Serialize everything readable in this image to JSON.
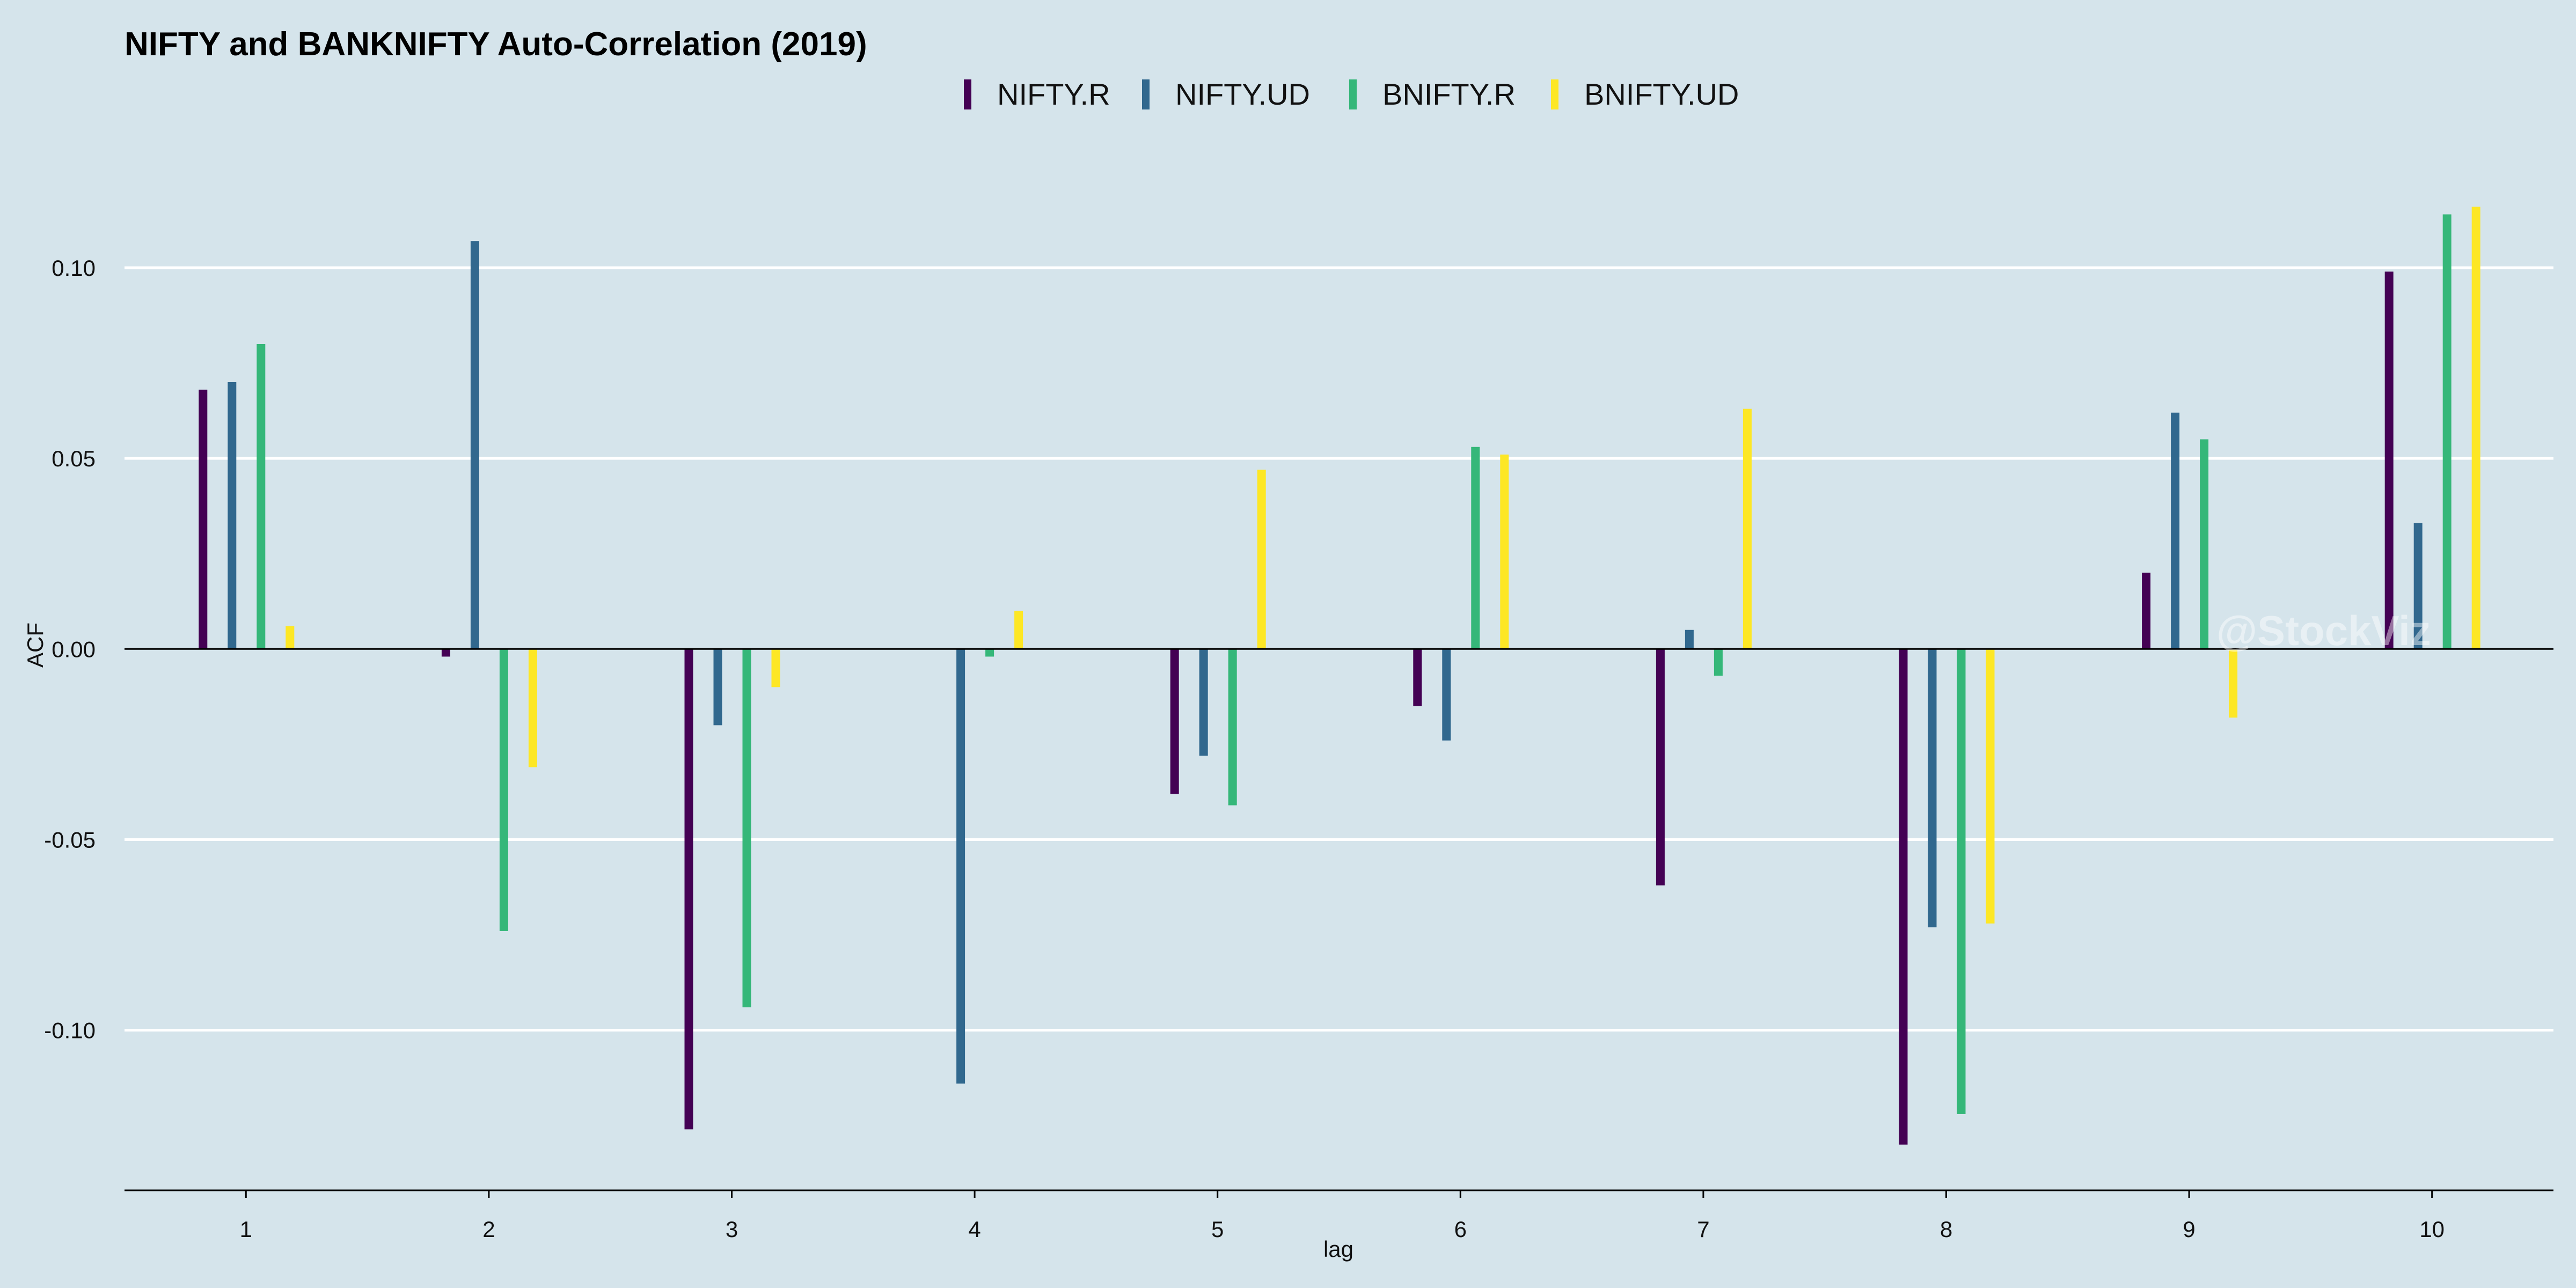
{
  "chart_data": {
    "type": "bar",
    "title": "NIFTY and BANKNIFTY Auto-Correlation (2019)",
    "xlabel": "lag",
    "ylabel": "ACF",
    "categories": [
      "1",
      "2",
      "3",
      "4",
      "5",
      "6",
      "7",
      "8",
      "9",
      "10"
    ],
    "ylim": [
      -0.142,
      0.128
    ],
    "yticks": [
      -0.1,
      -0.05,
      0.0,
      0.05,
      0.1
    ],
    "ytick_labels": [
      "-0.10",
      "-0.05",
      "0.00",
      "0.05",
      "0.10"
    ],
    "grid": true,
    "legend_position": "top",
    "series": [
      {
        "name": "NIFTY.R",
        "color": "#440154",
        "values": [
          0.068,
          -0.002,
          -0.126,
          0.0,
          -0.038,
          -0.015,
          -0.062,
          -0.13,
          0.02,
          0.099
        ]
      },
      {
        "name": "NIFTY.UD",
        "color": "#31688e",
        "values": [
          0.07,
          0.107,
          -0.02,
          -0.114,
          -0.028,
          -0.024,
          0.005,
          -0.073,
          0.062,
          0.033
        ]
      },
      {
        "name": "BNIFTY.R",
        "color": "#35b779",
        "values": [
          0.08,
          -0.074,
          -0.094,
          -0.002,
          -0.041,
          0.053,
          -0.007,
          -0.122,
          0.055,
          0.114
        ]
      },
      {
        "name": "BNIFTY.UD",
        "color": "#fde725",
        "values": [
          0.006,
          -0.031,
          -0.01,
          0.01,
          0.047,
          0.051,
          0.063,
          -0.072,
          -0.018,
          0.116
        ]
      }
    ],
    "watermark": "@StockViz"
  }
}
